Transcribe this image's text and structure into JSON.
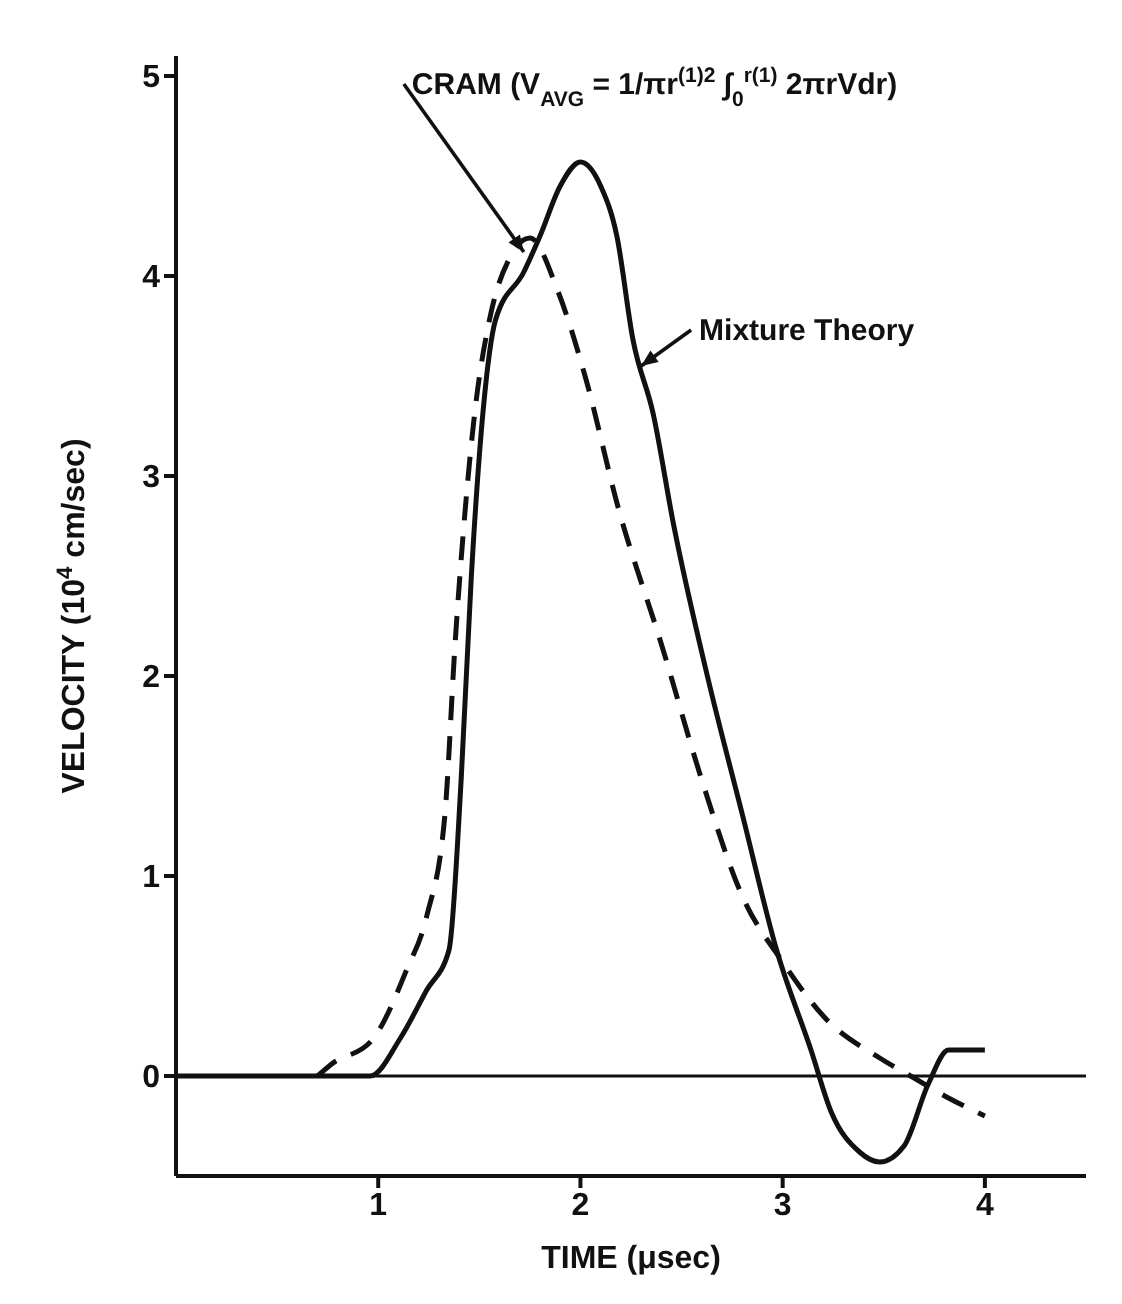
{
  "chart_data": {
    "type": "line",
    "xlabel": "TIME (μsec)",
    "ylabel": "VELOCITY (10$^{4}$ cm/sec)",
    "xlim": [
      0,
      4.5
    ],
    "ylim": [
      -0.5,
      5.1
    ],
    "xticks": [
      1,
      2,
      3,
      4
    ],
    "yticks": [
      0,
      1,
      2,
      3,
      4,
      5
    ],
    "marker": "none",
    "series": [
      {
        "color": "#111111",
        "line_style": "solid",
        "x": [
          0,
          0.7,
          0.96,
          1.11,
          1.24,
          1.35,
          1.41,
          1.46,
          1.52,
          1.58,
          1.72,
          1.8,
          1.9,
          2.0,
          2.1,
          2.18,
          2.26,
          2.36,
          2.46,
          2.63,
          2.8,
          2.97,
          3.14,
          3.24,
          3.38,
          3.48,
          3.6,
          3.72,
          3.82,
          4.0
        ],
        "values": [
          0,
          0,
          0,
          0.19,
          0.43,
          0.63,
          1.48,
          2.49,
          3.34,
          3.78,
          4.02,
          4.2,
          4.45,
          4.57,
          4.45,
          4.2,
          3.68,
          3.31,
          2.76,
          1.99,
          1.31,
          0.63,
          0.13,
          -0.18,
          -0.38,
          -0.43,
          -0.35,
          -0.04,
          0.13,
          0.13
        ]
      },
      {
        "color": "#111111",
        "line_style": "dashed",
        "x": [
          0.7,
          0.77,
          0.97,
          1.14,
          1.24,
          1.33,
          1.38,
          1.43,
          1.48,
          1.55,
          1.65,
          1.75,
          1.89,
          2.02,
          2.19,
          2.4,
          2.6,
          2.8,
          3.0,
          3.21,
          3.48,
          3.65,
          3.82,
          4.0
        ],
        "values": [
          0,
          0.06,
          0.18,
          0.53,
          0.8,
          1.31,
          2.16,
          2.83,
          3.34,
          3.78,
          4.09,
          4.19,
          3.92,
          3.51,
          2.83,
          2.16,
          1.48,
          0.9,
          0.57,
          0.29,
          0.09,
          -0.01,
          -0.11,
          -0.2
        ]
      }
    ],
    "ref_lines": [
      {
        "axis": "y",
        "value": 0,
        "color": "#111111",
        "line_style": "solid"
      }
    ],
    "annotations": [
      {
        "text": "CRAM (V$_{AVG}$ = 1/πr$^{(1)2}$ ∫$_{0}$$^{r(1)}$ 2πrVdr)",
        "x": 1.72,
        "y": 4.12
      },
      {
        "text": "Mixture Theory",
        "x": 2.3,
        "y": 3.55
      }
    ]
  }
}
